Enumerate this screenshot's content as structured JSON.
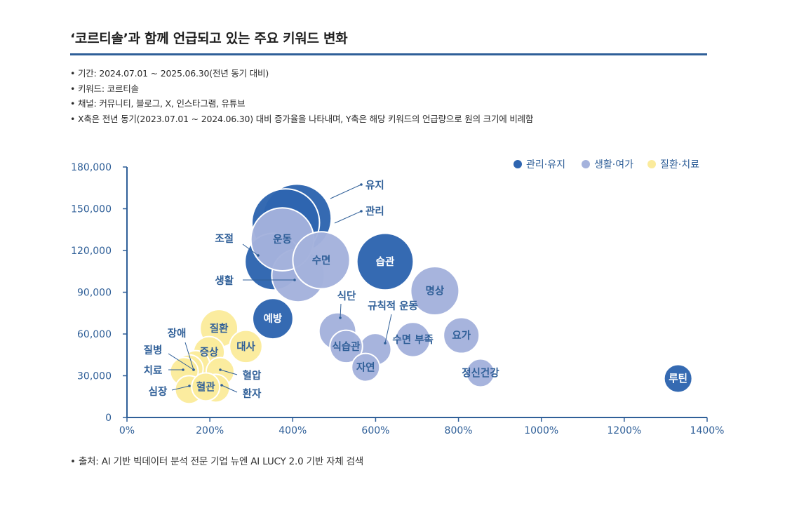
{
  "title": "‘코르티솔’과 함께 언급되고 있는 주요 키워드 변화",
  "notes": [
    "기간: 2024.07.01 ~ 2025.06.30(전년 동기 대비)",
    "키워드: 코르티솔",
    "채널: 커뮤니티, 블로그, X, 인스타그램, 유튜브",
    "X축은 전년 동기(2023.07.01 ~ 2024.06.30) 대비 증가율을 나타내며, Y축은 해당 키워드의 언급량으로 원의 크기에 비례함"
  ],
  "source": "출처: AI 기반 빅데이터 분석 전문 기업 뉴엔 AI LUCY 2.0 기반 자체 검색",
  "colors": {
    "관리·유지": "#2e65b0",
    "생활·여가": "#a4b2dc",
    "질환·치료": "#fbeb9c",
    "axis": "#2f5f98"
  },
  "chart_data": {
    "type": "bubble",
    "xlabel": "",
    "ylabel": "",
    "xlim": [
      0,
      1400
    ],
    "ylim": [
      0,
      180000
    ],
    "x_ticks": [
      0,
      200,
      400,
      600,
      800,
      1000,
      1200,
      1400
    ],
    "x_tick_labels": [
      "0%",
      "200%",
      "400%",
      "600%",
      "800%",
      "1000%",
      "1200%",
      "1400%"
    ],
    "y_ticks": [
      0,
      30000,
      60000,
      90000,
      120000,
      150000,
      180000
    ],
    "y_tick_labels": [
      "0",
      "30,000",
      "60,000",
      "90,000",
      "120,000",
      "150,000",
      "180,000"
    ],
    "legend": [
      {
        "name": "관리·유지",
        "color": "#2e65b0"
      },
      {
        "name": "생활·여가",
        "color": "#a4b2dc"
      },
      {
        "name": "질환·치료",
        "color": "#fbeb9c"
      }
    ],
    "points": [
      {
        "label": "유지",
        "category": "관리·유지",
        "x": 410,
        "y": 143000,
        "inside": false
      },
      {
        "label": "조절",
        "category": "관리·유지",
        "x": 353,
        "y": 112000,
        "inside": false
      },
      {
        "label": "관리",
        "category": "관리·유지",
        "x": 383,
        "y": 140000,
        "inside": false
      },
      {
        "label": "습관",
        "category": "관리·유지",
        "x": 623,
        "y": 112000,
        "inside": true
      },
      {
        "label": "예방",
        "category": "관리·유지",
        "x": 352,
        "y": 71000,
        "inside": true
      },
      {
        "label": "루틴",
        "category": "관리·유지",
        "x": 1330,
        "y": 28000,
        "inside": true
      },
      {
        "label": "운동",
        "category": "생활·여가",
        "x": 375,
        "y": 128000,
        "inside": true
      },
      {
        "label": "생활",
        "category": "생활·여가",
        "x": 413,
        "y": 102000,
        "inside": false
      },
      {
        "label": "수면",
        "category": "생활·여가",
        "x": 469,
        "y": 113000,
        "inside": true
      },
      {
        "label": "명상",
        "category": "생활·여가",
        "x": 743,
        "y": 91000,
        "inside": true
      },
      {
        "label": "식단",
        "category": "생활·여가",
        "x": 508,
        "y": 62000,
        "inside": false
      },
      {
        "label": "규칙적 운동",
        "category": "생활·여가",
        "x": 599,
        "y": 49000,
        "inside": false
      },
      {
        "label": "식습관",
        "category": "생활·여가",
        "x": 529,
        "y": 51000,
        "inside": true
      },
      {
        "label": "수면 부족",
        "category": "생활·여가",
        "x": 690,
        "y": 56000,
        "inside": true
      },
      {
        "label": "요가",
        "category": "생활·여가",
        "x": 807,
        "y": 59000,
        "inside": true
      },
      {
        "label": "자연",
        "category": "생활·여가",
        "x": 576,
        "y": 36000,
        "inside": true
      },
      {
        "label": "정신건강",
        "category": "생활·여가",
        "x": 853,
        "y": 32000,
        "inside": true
      },
      {
        "label": "질환",
        "category": "질환·치료",
        "x": 222,
        "y": 64000,
        "inside": true
      },
      {
        "label": "대사",
        "category": "질환·치료",
        "x": 287,
        "y": 51000,
        "inside": true
      },
      {
        "label": "증상",
        "category": "질환·치료",
        "x": 198,
        "y": 47000,
        "inside": true
      },
      {
        "label": "장애",
        "category": "질환·치료",
        "x": 166,
        "y": 38000,
        "inside": false
      },
      {
        "label": "질병",
        "category": "질환·치료",
        "x": 150,
        "y": 35000,
        "inside": false
      },
      {
        "label": "치료",
        "category": "질환·치료",
        "x": 138,
        "y": 33000,
        "inside": false
      },
      {
        "label": "혈압",
        "category": "질환·치료",
        "x": 225,
        "y": 33000,
        "inside": false
      },
      {
        "label": "혈관",
        "category": "질환·치료",
        "x": 190,
        "y": 22000,
        "inside": true
      },
      {
        "label": "심장",
        "category": "질환·치료",
        "x": 150,
        "y": 20000,
        "inside": false
      },
      {
        "label": "환자",
        "category": "질환·치료",
        "x": 214,
        "y": 21000,
        "inside": false
      }
    ]
  }
}
